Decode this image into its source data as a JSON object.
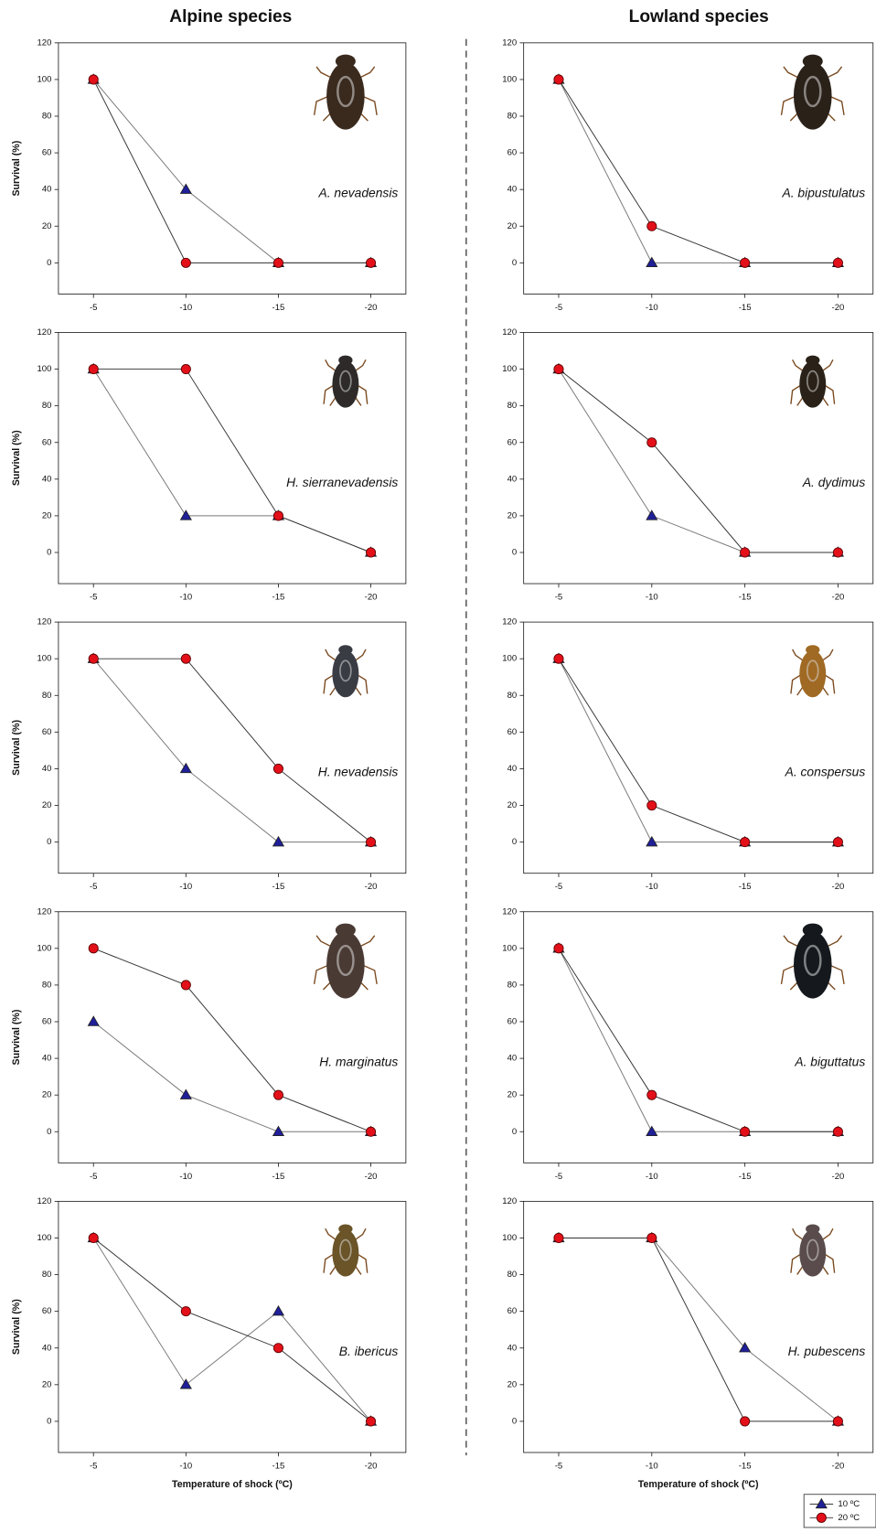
{
  "column_titles": [
    "Alpine species",
    "Lowland species"
  ],
  "legend": {
    "position": "lower right",
    "items": [
      {
        "name": "10 ºC",
        "color": "#1f1f9a",
        "marker": "triangle"
      },
      {
        "name": "20 ºC",
        "color": "#e3101a",
        "marker": "circle"
      }
    ]
  },
  "chart_data": [
    {
      "type": "line",
      "annotation": "A. nevadensis",
      "ylabel": "Survival (%)",
      "categories": [
        "-5",
        "-10",
        "-15",
        "-20"
      ],
      "series": [
        {
          "values": [
            100,
            40,
            0,
            0
          ]
        },
        {
          "values": [
            100,
            0,
            0,
            0
          ]
        }
      ],
      "ylim": [
        -17,
        120
      ],
      "yticks": [
        0,
        20,
        40,
        60,
        80,
        100,
        120
      ]
    },
    {
      "type": "line",
      "annotation": "A. bipustulatus",
      "categories": [
        "-5",
        "-10",
        "-15",
        "-20"
      ],
      "series": [
        {
          "values": [
            100,
            0,
            0,
            0
          ]
        },
        {
          "values": [
            100,
            20,
            0,
            0
          ]
        }
      ],
      "ylim": [
        -17,
        120
      ],
      "yticks": [
        0,
        20,
        40,
        60,
        80,
        100,
        120
      ]
    },
    {
      "type": "line",
      "annotation": "H. sierranevadensis",
      "ylabel": "Survival (%)",
      "categories": [
        "-5",
        "-10",
        "-15",
        "-20"
      ],
      "series": [
        {
          "values": [
            100,
            20,
            20,
            0
          ]
        },
        {
          "values": [
            100,
            100,
            20,
            0
          ]
        }
      ],
      "ylim": [
        -17,
        120
      ],
      "yticks": [
        0,
        20,
        40,
        60,
        80,
        100,
        120
      ]
    },
    {
      "type": "line",
      "annotation": "A. dydimus",
      "categories": [
        "-5",
        "-10",
        "-15",
        "-20"
      ],
      "series": [
        {
          "values": [
            100,
            20,
            0,
            0
          ]
        },
        {
          "values": [
            100,
            60,
            0,
            0
          ]
        }
      ],
      "ylim": [
        -17,
        120
      ],
      "yticks": [
        0,
        20,
        40,
        60,
        80,
        100,
        120
      ]
    },
    {
      "type": "line",
      "annotation": "H. nevadensis",
      "ylabel": "Survival (%)",
      "categories": [
        "-5",
        "-10",
        "-15",
        "-20"
      ],
      "series": [
        {
          "values": [
            100,
            40,
            0,
            0
          ]
        },
        {
          "values": [
            100,
            100,
            40,
            0
          ]
        }
      ],
      "ylim": [
        -17,
        120
      ],
      "yticks": [
        0,
        20,
        40,
        60,
        80,
        100,
        120
      ]
    },
    {
      "type": "line",
      "annotation": "A. conspersus",
      "categories": [
        "-5",
        "-10",
        "-15",
        "-20"
      ],
      "series": [
        {
          "values": [
            100,
            0,
            0,
            0
          ]
        },
        {
          "values": [
            100,
            20,
            0,
            0
          ]
        }
      ],
      "ylim": [
        -17,
        120
      ],
      "yticks": [
        0,
        20,
        40,
        60,
        80,
        100,
        120
      ]
    },
    {
      "type": "line",
      "annotation": "H. marginatus",
      "ylabel": "Survival (%)",
      "categories": [
        "-5",
        "-10",
        "-15",
        "-20"
      ],
      "series": [
        {
          "values": [
            60,
            20,
            0,
            0
          ]
        },
        {
          "values": [
            100,
            80,
            20,
            0
          ]
        }
      ],
      "ylim": [
        -17,
        120
      ],
      "yticks": [
        0,
        20,
        40,
        60,
        80,
        100,
        120
      ]
    },
    {
      "type": "line",
      "annotation": "A. biguttatus",
      "categories": [
        "-5",
        "-10",
        "-15",
        "-20"
      ],
      "series": [
        {
          "values": [
            100,
            0,
            0,
            0
          ]
        },
        {
          "values": [
            100,
            20,
            0,
            0
          ]
        }
      ],
      "ylim": [
        -17,
        120
      ],
      "yticks": [
        0,
        20,
        40,
        60,
        80,
        100,
        120
      ]
    },
    {
      "type": "line",
      "annotation": "B. ibericus",
      "ylabel": "Survival (%)",
      "xlabel": "Temperature of shock (ºC)",
      "categories": [
        "-5",
        "-10",
        "-15",
        "-20"
      ],
      "series": [
        {
          "values": [
            100,
            20,
            60,
            0
          ]
        },
        {
          "values": [
            100,
            60,
            40,
            0
          ]
        }
      ],
      "ylim": [
        -17,
        120
      ],
      "yticks": [
        0,
        20,
        40,
        60,
        80,
        100,
        120
      ]
    },
    {
      "type": "line",
      "annotation": "H. pubescens",
      "xlabel": "Temperature of shock (ºC)",
      "categories": [
        "-5",
        "-10",
        "-15",
        "-20"
      ],
      "series": [
        {
          "values": [
            100,
            100,
            40,
            0
          ]
        },
        {
          "values": [
            100,
            100,
            0,
            0
          ]
        }
      ],
      "ylim": [
        -17,
        120
      ],
      "yticks": [
        0,
        20,
        40,
        60,
        80,
        100,
        120
      ]
    }
  ]
}
